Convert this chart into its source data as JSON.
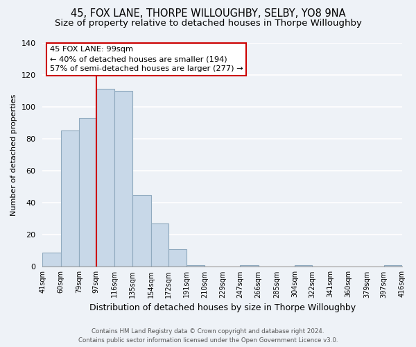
{
  "title": "45, FOX LANE, THORPE WILLOUGHBY, SELBY, YO8 9NA",
  "subtitle": "Size of property relative to detached houses in Thorpe Willoughby",
  "xlabel": "Distribution of detached houses by size in Thorpe Willoughby",
  "ylabel": "Number of detached properties",
  "bar_edges": [
    41,
    60,
    79,
    97,
    116,
    135,
    154,
    172,
    191,
    210,
    229,
    247,
    266,
    285,
    304,
    322,
    341,
    360,
    379,
    397,
    416
  ],
  "bar_heights": [
    9,
    85,
    93,
    111,
    110,
    45,
    27,
    11,
    1,
    0,
    0,
    1,
    0,
    0,
    1,
    0,
    0,
    0,
    0,
    1
  ],
  "bar_color": "#c8d8e8",
  "bar_edgecolor": "#90aabf",
  "vline_x": 97,
  "vline_color": "#cc0000",
  "ylim": [
    0,
    140
  ],
  "yticks": [
    0,
    20,
    40,
    60,
    80,
    100,
    120,
    140
  ],
  "annotation_line1": "45 FOX LANE: 99sqm",
  "annotation_line2": "← 40% of detached houses are smaller (194)",
  "annotation_line3": "57% of semi-detached houses are larger (277) →",
  "annotation_box_edgecolor": "#cc0000",
  "annotation_box_facecolor": "#ffffff",
  "tick_labels": [
    "41sqm",
    "60sqm",
    "79sqm",
    "97sqm",
    "116sqm",
    "135sqm",
    "154sqm",
    "172sqm",
    "191sqm",
    "210sqm",
    "229sqm",
    "247sqm",
    "266sqm",
    "285sqm",
    "304sqm",
    "322sqm",
    "341sqm",
    "360sqm",
    "379sqm",
    "397sqm",
    "416sqm"
  ],
  "footer_line1": "Contains HM Land Registry data © Crown copyright and database right 2024.",
  "footer_line2": "Contains public sector information licensed under the Open Government Licence v3.0.",
  "background_color": "#eef2f7",
  "plot_background": "#eef2f7",
  "grid_color": "#ffffff",
  "title_fontsize": 10.5,
  "subtitle_fontsize": 9.5,
  "ylabel_fontsize": 8,
  "xlabel_fontsize": 9
}
